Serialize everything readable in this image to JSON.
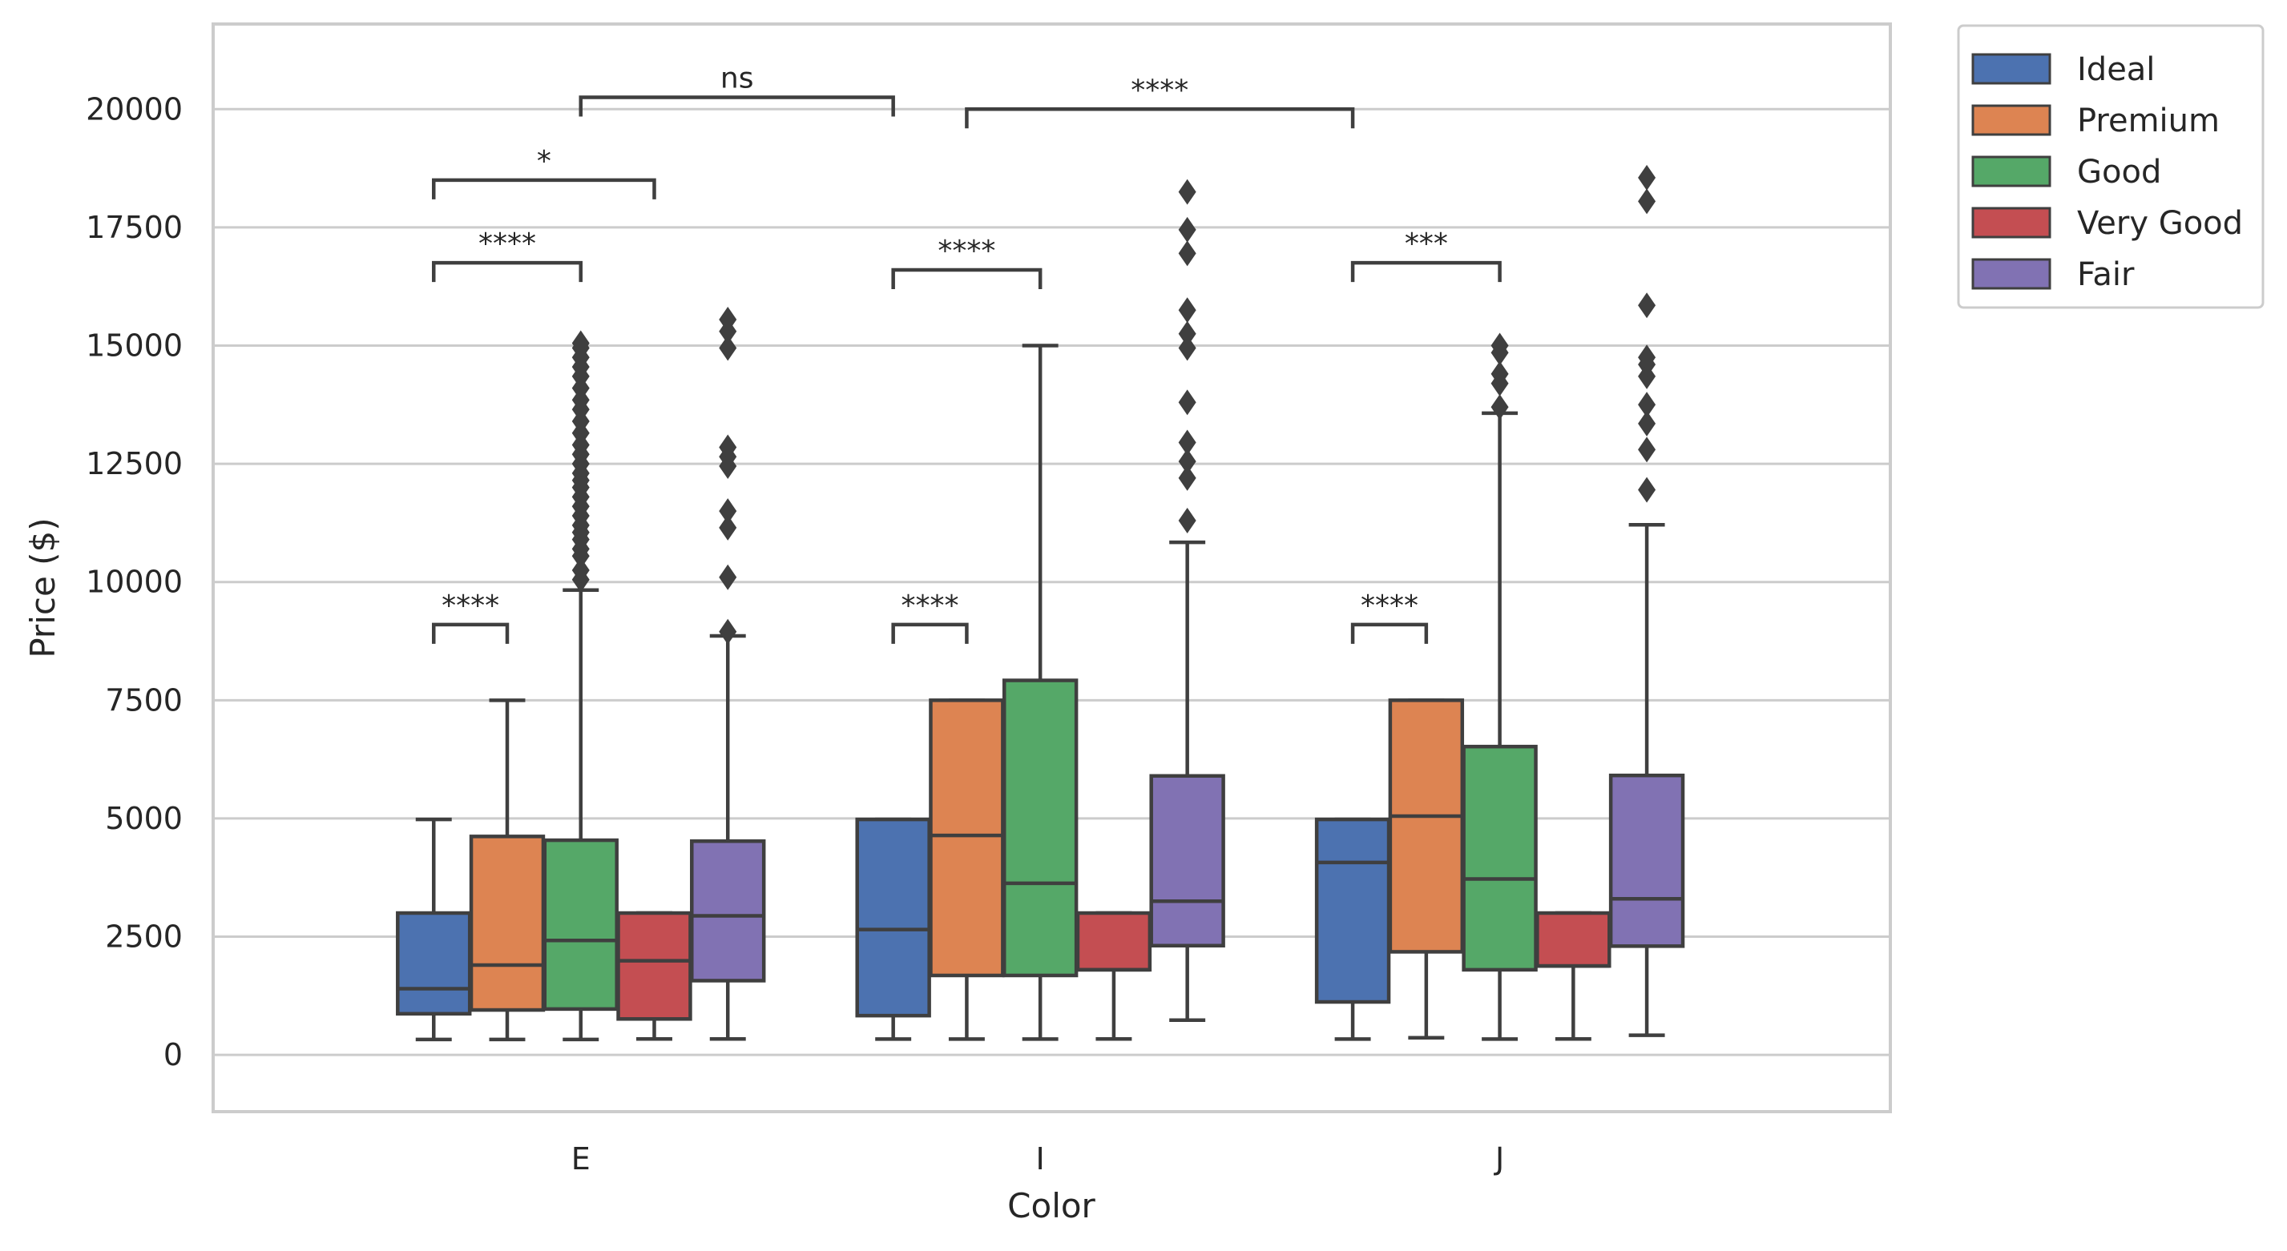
{
  "chart_data": {
    "type": "box",
    "xlabel": "Color",
    "ylabel": "Price ($)",
    "categories": [
      "E",
      "I",
      "J"
    ],
    "ylim": [
      -1200,
      21800
    ],
    "yticks": [
      0,
      2500,
      5000,
      7500,
      10000,
      12500,
      15000,
      17500,
      20000
    ],
    "ytick_labels": [
      "0",
      "2500",
      "5000",
      "7500",
      "10000",
      "12500",
      "15000",
      "17500",
      "20000"
    ],
    "grid": true,
    "legend_position": "outside top-right",
    "series": [
      {
        "name": "Ideal",
        "color": "#4C72B0",
        "boxes": [
          {
            "whislo": 326,
            "q1": 870,
            "med": 1400,
            "q3": 3000,
            "whishi": 4980,
            "fliers": []
          },
          {
            "whislo": 335,
            "q1": 830,
            "med": 2650,
            "q3": 4980,
            "whishi": 4980,
            "fliers": []
          },
          {
            "whislo": 335,
            "q1": 1120,
            "med": 4070,
            "q3": 4980,
            "whishi": 4980,
            "fliers": []
          }
        ]
      },
      {
        "name": "Premium",
        "color": "#DD8452",
        "boxes": [
          {
            "whislo": 326,
            "q1": 950,
            "med": 1900,
            "q3": 4620,
            "whishi": 7500,
            "fliers": []
          },
          {
            "whislo": 334,
            "q1": 1680,
            "med": 4640,
            "q3": 7500,
            "whishi": 7500,
            "fliers": []
          },
          {
            "whislo": 363,
            "q1": 2180,
            "med": 5050,
            "q3": 7500,
            "whishi": 7500,
            "fliers": []
          }
        ]
      },
      {
        "name": "Good",
        "color": "#55A868",
        "boxes": [
          {
            "whislo": 327,
            "q1": 970,
            "med": 2420,
            "q3": 4540,
            "whishi": 9830,
            "fliers": [
              10050,
              10250,
              10550,
              10700,
              10900,
              11050,
              11200,
              11400,
              11600,
              11800,
              12000,
              12150,
              12300,
              12500,
              12700,
              12900,
              13150,
              13400,
              13650,
              13850,
              14100,
              14350,
              14550,
              14750,
              14950,
              15050
            ]
          },
          {
            "whislo": 335,
            "q1": 1680,
            "med": 3630,
            "q3": 7920,
            "whishi": 15000,
            "fliers": []
          },
          {
            "whislo": 335,
            "q1": 1800,
            "med": 3720,
            "q3": 6520,
            "whishi": 13570,
            "fliers": [
              13700,
              14200,
              14400,
              14850,
              15000
            ]
          }
        ]
      },
      {
        "name": "Very Good",
        "color": "#C44E52",
        "boxes": [
          {
            "whislo": 336,
            "q1": 760,
            "med": 1990,
            "q3": 3000,
            "whishi": 3000,
            "fliers": []
          },
          {
            "whislo": 336,
            "q1": 1800,
            "med": 1800,
            "q3": 3000,
            "whishi": 3000,
            "fliers": []
          },
          {
            "whislo": 336,
            "q1": 1880,
            "med": 1880,
            "q3": 3000,
            "whishi": 3000,
            "fliers": []
          }
        ]
      },
      {
        "name": "Fair",
        "color": "#8172B3",
        "boxes": [
          {
            "whislo": 337,
            "q1": 1570,
            "med": 2940,
            "q3": 4520,
            "whishi": 8860,
            "fliers": [
              8950,
              10100,
              11150,
              11500,
              12450,
              12650,
              12850,
              14950,
              15300,
              15550
            ]
          },
          {
            "whislo": 735,
            "q1": 2310,
            "med": 3250,
            "q3": 5900,
            "whishi": 10840,
            "fliers": [
              11300,
              12200,
              12550,
              12950,
              13800,
              14950,
              15250,
              15750,
              16950,
              17450,
              18250
            ]
          },
          {
            "whislo": 416,
            "q1": 2300,
            "med": 3300,
            "q3": 5910,
            "whishi": 11210,
            "fliers": [
              11950,
              12800,
              13350,
              13750,
              14350,
              14600,
              14750,
              15850,
              18050,
              18550
            ]
          }
        ]
      }
    ],
    "annotations": [
      {
        "text": "****",
        "x1": "E/Ideal",
        "x2": "E/Premium",
        "y": 9100
      },
      {
        "text": "****",
        "x1": "I/Ideal",
        "x2": "I/Premium",
        "y": 9100
      },
      {
        "text": "****",
        "x1": "J/Ideal",
        "x2": "J/Premium",
        "y": 9100
      },
      {
        "text": "****",
        "x1": "E/Ideal",
        "x2": "E/Good",
        "y": 16750
      },
      {
        "text": "*",
        "x1": "E/Ideal",
        "x2": "E/Very Good",
        "y": 18500
      },
      {
        "text": "ns",
        "x1": "E/Good",
        "x2": "I/Ideal",
        "y": 20250
      },
      {
        "text": "****",
        "x1": "I/Ideal",
        "x2": "I/Good",
        "y": 16600
      },
      {
        "text": "****",
        "x1": "I/Premium",
        "x2": "J/Ideal",
        "y": 20000
      },
      {
        "text": "***",
        "x1": "J/Ideal",
        "x2": "J/Good",
        "y": 16750
      }
    ]
  }
}
